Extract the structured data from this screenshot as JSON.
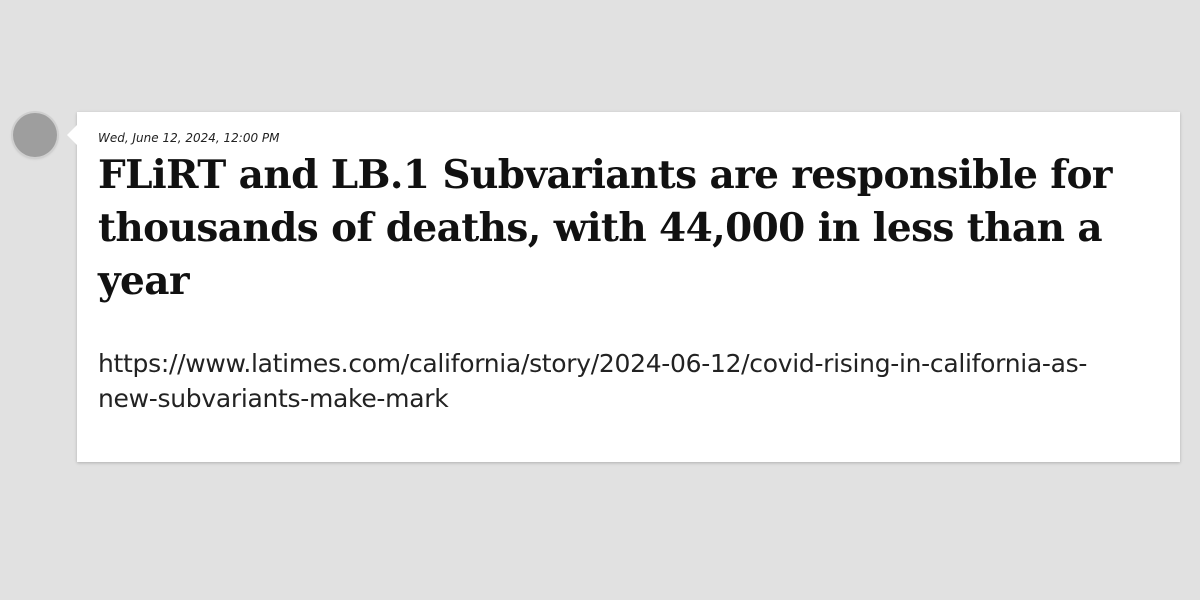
{
  "post": {
    "timestamp": "Wed, June 12, 2024, 12:00 PM",
    "headline": "FLiRT and LB.1 Subvariants are responsible for thousands of deaths, with 44,000 in less than a year",
    "link_text": "https://www.latimes.com/california/story/2024-06-12/covid-rising-in-california-as-new-subvariants-make-mark",
    "avatar_icon": "avatar-placeholder-icon"
  },
  "colors": {
    "background": "#e1e1e1",
    "card": "#ffffff",
    "avatar": "#9e9e9e",
    "text": "#111111"
  }
}
